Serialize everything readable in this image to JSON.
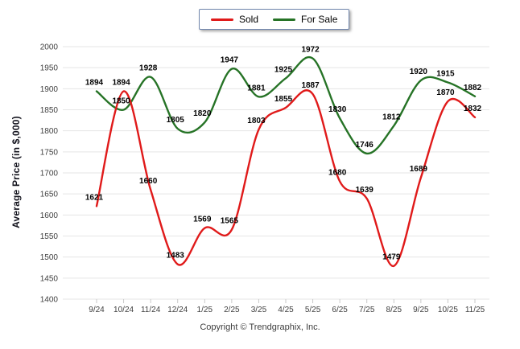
{
  "footer": {
    "copyright": "Copyright © Trendgraphix, Inc."
  },
  "chart_data": {
    "type": "line",
    "title": "",
    "xlabel": "",
    "ylabel": "Average Price (in $,000)",
    "categories": [
      "9/24",
      "10/24",
      "11/24",
      "12/24",
      "1/25",
      "2/25",
      "3/25",
      "4/25",
      "5/25",
      "6/25",
      "7/25",
      "8/25",
      "9/25",
      "10/25",
      "11/25"
    ],
    "series": [
      {
        "name": "Sold",
        "color": "#e01a1a",
        "values": [
          1621,
          1894,
          1660,
          1483,
          1569,
          1565,
          1803,
          1855,
          1887,
          1680,
          1639,
          1479,
          1689,
          1870,
          1832
        ]
      },
      {
        "name": "For Sale",
        "color": "#267326",
        "values": [
          1894,
          1850,
          1928,
          1805,
          1820,
          1947,
          1881,
          1925,
          1972,
          1830,
          1746,
          1812,
          1920,
          1915,
          1882
        ]
      }
    ],
    "ylim": [
      1400,
      2000
    ],
    "yticks": [
      1400,
      1450,
      1500,
      1550,
      1600,
      1650,
      1700,
      1750,
      1800,
      1850,
      1900,
      1950,
      2000
    ],
    "grid": true,
    "smooth": true,
    "point_labels": true,
    "legend_position": "top-center",
    "grid_color": "#e5e5e5",
    "tick_color": "#c9c9c9",
    "axis_text_color": "#404040",
    "point_label_color": "#000000"
  }
}
